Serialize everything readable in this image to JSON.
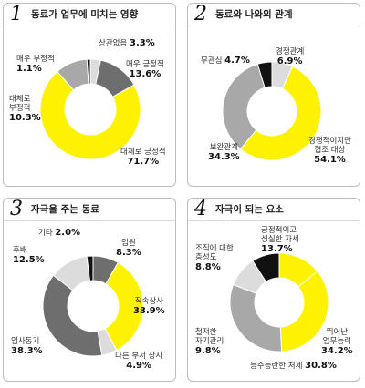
{
  "colors": {
    "yellow": "#fff200",
    "dark_gray": "#6e6e6e",
    "mid_gray": "#a8a8a8",
    "light_gray": "#dcdcdc",
    "black": "#111111"
  },
  "chart_data": [
    {
      "type": "pie",
      "number": "1",
      "title": "동료가 업무에 미치는 영향",
      "series": [
        {
          "name": "상관없음",
          "value": 3.3,
          "label": "3.3%",
          "color": "#dcdcdc"
        },
        {
          "name": "매우 긍정적",
          "value": 13.6,
          "label": "13.6%",
          "color": "#6e6e6e"
        },
        {
          "name": "대체로 긍정적",
          "value": 71.7,
          "label": "71.7%",
          "color": "#fff200"
        },
        {
          "name": "대체로 부정적",
          "value": 10.3,
          "label": "10.3%",
          "color": "#a8a8a8"
        },
        {
          "name": "매우 부정적",
          "value": 1.1,
          "label": "1.1%",
          "color": "#111111"
        }
      ]
    },
    {
      "type": "pie",
      "number": "2",
      "title": "동료와 나와의 관계",
      "series": [
        {
          "name": "경쟁관계",
          "value": 6.9,
          "label": "6.9%",
          "color": "#dcdcdc"
        },
        {
          "name": "경쟁적이지만 협조 대상",
          "value": 54.1,
          "label": "54.1%",
          "color": "#fff200"
        },
        {
          "name": "보완관계",
          "value": 34.3,
          "label": "34.3%",
          "color": "#a8a8a8"
        },
        {
          "name": "무관심",
          "value": 4.7,
          "label": "4.7%",
          "color": "#111111"
        }
      ]
    },
    {
      "type": "pie",
      "number": "3",
      "title": "자극을 주는 동료",
      "series": [
        {
          "name": "임원",
          "value": 8.3,
          "label": "8.3%",
          "color": "#6e6e6e"
        },
        {
          "name": "직속상사",
          "value": 33.9,
          "label": "33.9%",
          "color": "#fff200"
        },
        {
          "name": "다른 부서 상사",
          "value": 4.9,
          "label": "4.9%",
          "color": "#dcdcdc"
        },
        {
          "name": "입사동기",
          "value": 38.3,
          "label": "38.3%",
          "color": "#6e6e6e"
        },
        {
          "name": "후배",
          "value": 12.5,
          "label": "12.5%",
          "color": "#dcdcdc"
        },
        {
          "name": "기타",
          "value": 2.0,
          "label": "2.0%",
          "color": "#111111"
        }
      ]
    },
    {
      "type": "pie",
      "number": "4",
      "title": "자극이 되는 요소",
      "series": [
        {
          "name": "긍정적이고 성실한 자세",
          "value": 13.7,
          "label": "13.7%",
          "color": "#fff200"
        },
        {
          "name": "뛰어난 업무능력",
          "value": 34.2,
          "label": "34.2%",
          "color": "#fff200"
        },
        {
          "name": "능수능란한 처세",
          "value": 30.8,
          "label": "30.8%",
          "color": "#a8a8a8"
        },
        {
          "name": "철저한 자기관리",
          "value": 9.8,
          "label": "9.8%",
          "color": "#dcdcdc"
        },
        {
          "name": "조직에 대한 충성도",
          "value": 8.8,
          "label": "8.8%",
          "color": "#111111"
        }
      ]
    }
  ]
}
